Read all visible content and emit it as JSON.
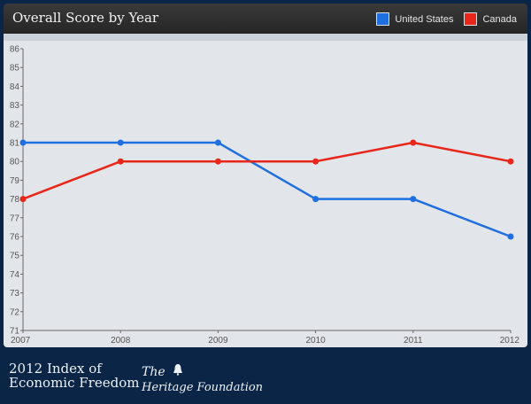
{
  "header": {
    "title": "Overall Score by Year"
  },
  "legend": [
    {
      "label": "United States",
      "color": "#1f6fe0"
    },
    {
      "label": "Canada",
      "color": "#e8261a"
    }
  ],
  "footer": {
    "brand_line1": "2012 Index of",
    "brand_line2": "Economic Freedom",
    "org_the": "The",
    "org_name": "Heritage Foundation"
  },
  "chart_data": {
    "type": "line",
    "title": "Overall Score by Year",
    "categories": [
      "2007",
      "2008",
      "2009",
      "2010",
      "2011",
      "2012"
    ],
    "series": [
      {
        "name": "United States",
        "color": "#1f6fe0",
        "values": [
          81,
          81,
          81,
          78,
          78,
          76
        ]
      },
      {
        "name": "Canada",
        "color": "#e8261a",
        "values": [
          78,
          80,
          80,
          80,
          81,
          80
        ]
      }
    ],
    "ylim": [
      71,
      86
    ],
    "yticks": [
      71,
      72,
      73,
      74,
      75,
      76,
      77,
      78,
      79,
      80,
      81,
      82,
      83,
      84,
      85,
      86
    ],
    "grid": false,
    "legend_position": "top-right"
  }
}
